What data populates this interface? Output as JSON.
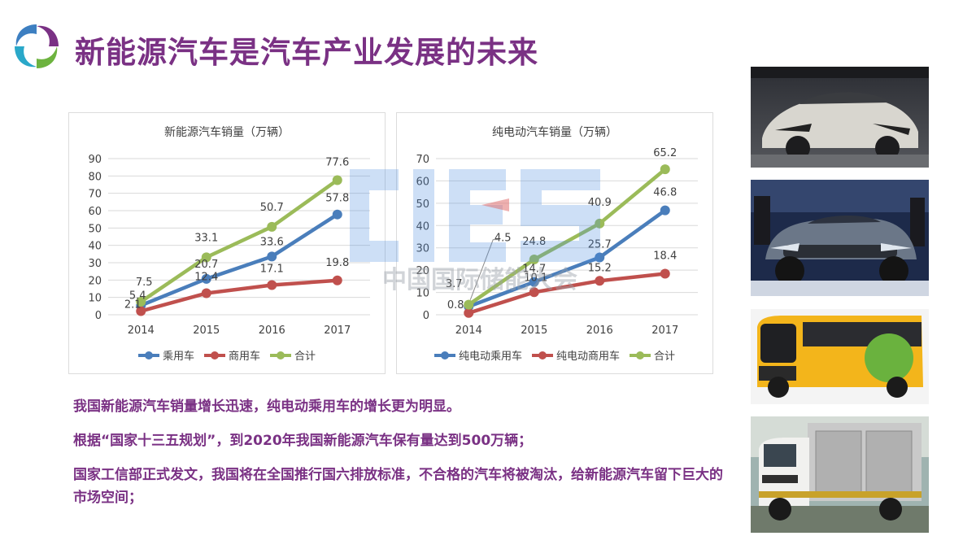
{
  "title": "新能源汽车是汽车产业发展的未来",
  "paragraphs": [
    "我国新能源汽车销量增长迅速，纯电动乘用车的增长更为明显。",
    "根据“国家十三五规划”，到2020年我国新能源汽车保有量达到500万辆；",
    "国家工信部正式发文，我国将在全国推行国六排放标准，不合格的汽车将被淘汰，给新能源汽车留下巨大的市场空间；"
  ],
  "watermark": {
    "text": "中国国际储能大会",
    "letters": "CIES"
  },
  "colors": {
    "title": "#7a3184",
    "blue": "#4a7ebb",
    "red": "#c0504d",
    "green": "#9bbb59"
  },
  "chart_data": [
    {
      "type": "line",
      "title": "新能源汽车销量（万辆）",
      "categories": [
        "2014",
        "2015",
        "2016",
        "2017"
      ],
      "ylim": [
        0,
        90
      ],
      "yticks": [
        0,
        10,
        20,
        30,
        40,
        50,
        60,
        70,
        80,
        90
      ],
      "grid": true,
      "legend": "bottom",
      "series": [
        {
          "name": "乘用车",
          "values": [
            5.4,
            20.7,
            33.6,
            57.8
          ],
          "labels": [
            "5.4",
            "20.7",
            "33.6",
            "57.8"
          ],
          "color": "#4a7ebb"
        },
        {
          "name": "商用车",
          "values": [
            2.1,
            12.4,
            17.1,
            19.8
          ],
          "labels": [
            "2.1",
            "12.4",
            "17.1",
            "19.8"
          ],
          "color": "#c0504d"
        },
        {
          "name": "合计",
          "values": [
            7.5,
            33.1,
            50.7,
            77.6
          ],
          "labels": [
            "7.5",
            "33.1",
            "50.7",
            "77.6"
          ],
          "color": "#9bbb59"
        }
      ]
    },
    {
      "type": "line",
      "title": "纯电动汽车销量（万辆）",
      "categories": [
        "2014",
        "2015",
        "2016",
        "2017"
      ],
      "ylim": [
        0,
        70
      ],
      "yticks": [
        0,
        10,
        20,
        30,
        40,
        50,
        60,
        70
      ],
      "grid": true,
      "legend": "bottom",
      "series": [
        {
          "name": "纯电动乘用车",
          "values": [
            3.7,
            14.7,
            25.7,
            46.8
          ],
          "labels": [
            "3.7",
            "14.7",
            "25.7",
            "46.8"
          ],
          "color": "#4a7ebb"
        },
        {
          "name": "纯电动商用车",
          "values": [
            0.8,
            10.1,
            15.2,
            18.4
          ],
          "labels": [
            "0.8",
            "10.1",
            "15.2",
            "18.4"
          ],
          "color": "#c0504d"
        },
        {
          "name": "合计",
          "values": [
            4.5,
            24.8,
            40.9,
            65.2
          ],
          "labels": [
            "4.5",
            "24.8",
            "40.9",
            "65.2"
          ],
          "color": "#9bbb59"
        }
      ]
    }
  ]
}
